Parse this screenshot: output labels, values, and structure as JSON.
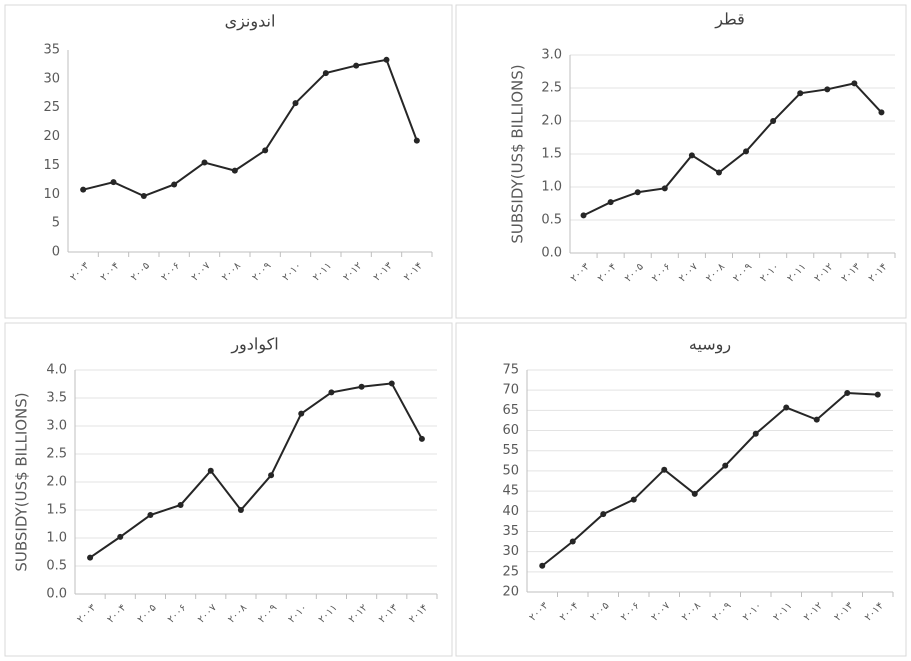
{
  "chart_data": [
    {
      "type": "line",
      "title": "اندونزی",
      "categories": [
        "۲۰۰۳",
        "۲۰۰۴",
        "۲۰۰۵",
        "۲۰۰۶",
        "۲۰۰۷",
        "۲۰۰۸",
        "۲۰۰۹",
        "۲۰۱۰",
        "۲۰۱۱",
        "۲۰۱۲",
        "۲۰۱۳",
        "۲۰۱۴"
      ],
      "series": [
        {
          "name": "اندونزی",
          "color": "#262626",
          "values": [
            10.8,
            12.1,
            9.7,
            11.7,
            15.5,
            14.1,
            17.6,
            25.8,
            31,
            32.3,
            33.3,
            19.3
          ]
        }
      ],
      "ylim": [
        0,
        35
      ],
      "yticks": [
        0,
        5,
        10,
        15,
        20,
        25,
        30,
        35
      ],
      "grid": false
    },
    {
      "type": "line",
      "title": "قطر",
      "y_label": "SUBSIDY(US$ BILLIONS)",
      "categories": [
        "۲۰۰۳",
        "۲۰۰۴",
        "۲۰۰۵",
        "۲۰۰۶",
        "۲۰۰۷",
        "۲۰۰۸",
        "۲۰۰۹",
        "۲۰۱۰",
        "۲۰۱۱",
        "۲۰۱۲",
        "۲۰۱۳",
        "۲۰۱۴"
      ],
      "series": [
        {
          "name": "قطر",
          "color": "#262626",
          "values": [
            0.57,
            0.77,
            0.92,
            0.98,
            1.48,
            1.22,
            1.54,
            2.0,
            2.42,
            2.48,
            2.57,
            2.13
          ]
        }
      ],
      "ylim": [
        0,
        3
      ],
      "yticks": [
        {
          "value": 0,
          "label": "0.0"
        },
        {
          "value": 0.5,
          "label": "0.5"
        },
        {
          "value": 1,
          "label": "1.0"
        },
        {
          "value": 1.5,
          "label": "1.5"
        },
        {
          "value": 2,
          "label": "2.0"
        },
        {
          "value": 2.5,
          "label": "2.5"
        },
        {
          "value": 3,
          "label": "3.0"
        }
      ],
      "grid": true
    },
    {
      "type": "line",
      "title": "اکوادور",
      "y_label": "SUBSIDY(US$ BILLIONS)",
      "categories": [
        "۲۰۰۳",
        "۲۰۰۴",
        "۲۰۰۵",
        "۲۰۰۶",
        "۲۰۰۷",
        "۲۰۰۸",
        "۲۰۰۹",
        "۲۰۱۰",
        "۲۰۱۱",
        "۲۰۱۲",
        "۲۰۱۳",
        "۲۰۱۴"
      ],
      "series": [
        {
          "name": "اکوادور",
          "color": "#262626",
          "values": [
            0.65,
            1.02,
            1.41,
            1.59,
            2.2,
            1.5,
            2.12,
            3.22,
            3.6,
            3.7,
            3.76,
            2.77
          ]
        }
      ],
      "ylim": [
        0,
        4
      ],
      "yticks": [
        {
          "value": 0,
          "label": "0.0"
        },
        {
          "value": 0.5,
          "label": "0.5"
        },
        {
          "value": 1,
          "label": "1.0"
        },
        {
          "value": 1.5,
          "label": "1.5"
        },
        {
          "value": 2,
          "label": "2.0"
        },
        {
          "value": 2.5,
          "label": "2.5"
        },
        {
          "value": 3,
          "label": "3.0"
        },
        {
          "value": 3.5,
          "label": "3.5"
        },
        {
          "value": 4,
          "label": "4.0"
        }
      ],
      "grid": true
    },
    {
      "type": "line",
      "title": "روسیه",
      "categories": [
        "۲۰۰۳",
        "۲۰۰۴",
        "۲۰۰۵",
        "۲۰۰۶",
        "۲۰۰۷",
        "۲۰۰۸",
        "۲۰۰۹",
        "۲۰۱۰",
        "۲۰۱۱",
        "۲۰۱۲",
        "۲۰۱۳",
        "۲۰۱۴"
      ],
      "series": [
        {
          "name": "روسیه",
          "color": "#262626",
          "values": [
            26.5,
            32.5,
            39.3,
            42.9,
            50.3,
            44.3,
            51.3,
            59.2,
            65.7,
            62.7,
            69.3,
            68.9
          ]
        }
      ],
      "ylim": [
        20,
        75
      ],
      "yticks": [
        20,
        25,
        30,
        35,
        40,
        45,
        50,
        55,
        60,
        65,
        70,
        75
      ],
      "grid": true
    }
  ]
}
